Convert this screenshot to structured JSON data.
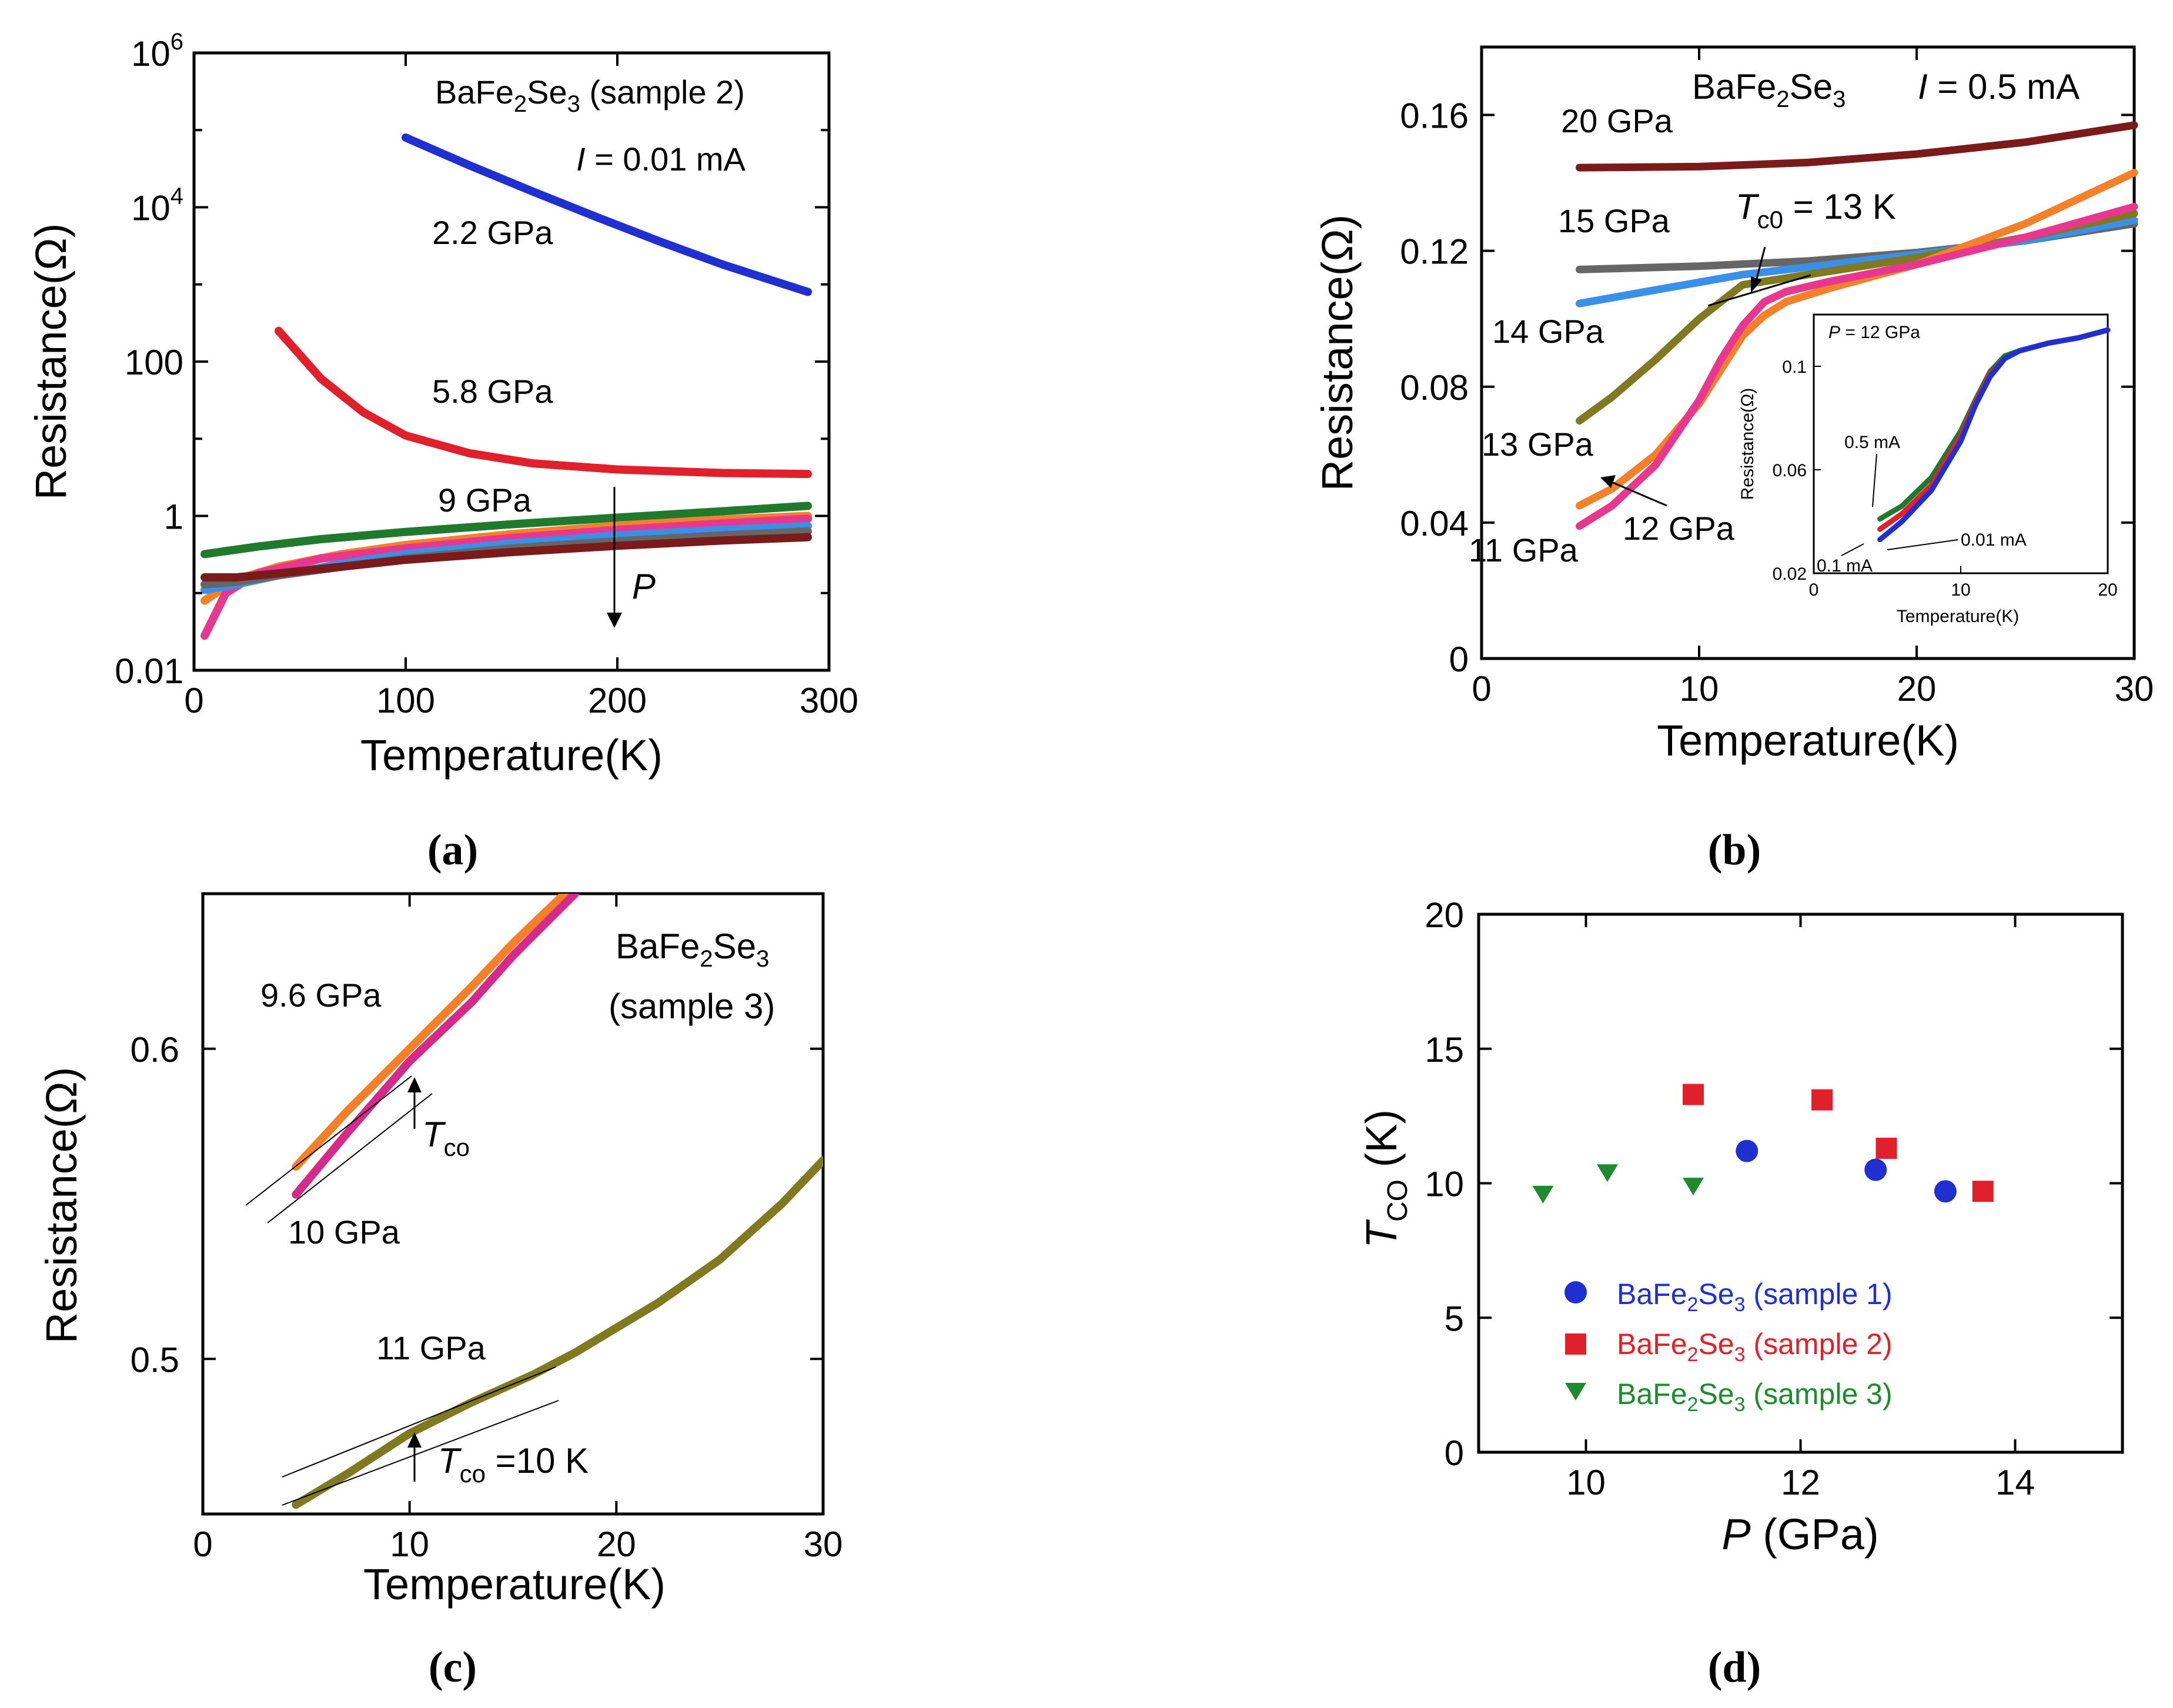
{
  "chart_data": [
    {
      "id": "a",
      "type": "line",
      "panel_label": "(a)",
      "xlabel": "Temperature(K)",
      "ylabel": "Resistance(Ω)",
      "xlim": [
        0,
        300
      ],
      "ylim": [
        0.01,
        1000000
      ],
      "yscale": "log",
      "x_ticks": [
        "0",
        "100",
        "200",
        "300"
      ],
      "y_ticks": [
        {
          "value": 0.01,
          "base": "0.01",
          "exp": ""
        },
        {
          "value": 1,
          "base": "1",
          "exp": ""
        },
        {
          "value": 100,
          "base": "100",
          "exp": ""
        },
        {
          "value": 10000,
          "base": "10",
          "exp": "4"
        },
        {
          "value": 1000000,
          "base": "10",
          "exp": "6"
        }
      ],
      "title": {
        "formula": {
          "a": "BaFe",
          "s1": "2",
          "b": "Se",
          "s2": "3"
        },
        "suffix": " (sample 2)"
      },
      "current": {
        "var": "I",
        "value": " = 0.01 mA"
      },
      "arrow_label": "P",
      "series": [
        {
          "name": "2.2 GPa",
          "color": "#1f2fd0",
          "x": [
            100,
            130,
            160,
            190,
            220,
            250,
            290
          ],
          "y": [
            80000,
            35000,
            16000,
            7500,
            3600,
            1800,
            800
          ]
        },
        {
          "name": "5.8 GPa",
          "color": "#e0202a",
          "x": [
            40,
            60,
            80,
            100,
            130,
            160,
            200,
            250,
            290
          ],
          "y": [
            250,
            60,
            22,
            11,
            6.5,
            4.8,
            4.0,
            3.6,
            3.5
          ]
        },
        {
          "name": "9 GPa",
          "color": "#1f7a2e",
          "x": [
            5,
            30,
            60,
            100,
            150,
            200,
            250,
            290
          ],
          "y": [
            0.32,
            0.4,
            0.5,
            0.62,
            0.78,
            0.95,
            1.15,
            1.35
          ]
        },
        {
          "name": "orange",
          "color": "#f5802a",
          "x": [
            5,
            20,
            40,
            70,
            100,
            150,
            200,
            250,
            290
          ],
          "y": [
            0.08,
            0.15,
            0.22,
            0.32,
            0.42,
            0.58,
            0.75,
            0.9,
            1.0
          ]
        },
        {
          "name": "magenta",
          "color": "#e8378f",
          "x": [
            5,
            15,
            30,
            60,
            100,
            150,
            200,
            250,
            290
          ],
          "y": [
            0.028,
            0.1,
            0.18,
            0.28,
            0.38,
            0.52,
            0.66,
            0.8,
            0.92
          ]
        },
        {
          "name": "blue",
          "color": "#3a8fe8",
          "x": [
            5,
            20,
            40,
            70,
            100,
            150,
            200,
            250,
            290
          ],
          "y": [
            0.11,
            0.13,
            0.17,
            0.24,
            0.32,
            0.44,
            0.56,
            0.66,
            0.74
          ]
        },
        {
          "name": "gray",
          "color": "#666666",
          "x": [
            5,
            20,
            40,
            70,
            100,
            150,
            200,
            250,
            290
          ],
          "y": [
            0.13,
            0.14,
            0.17,
            0.22,
            0.28,
            0.38,
            0.47,
            0.56,
            0.63
          ]
        },
        {
          "name": "dark red",
          "color": "#7a1a1a",
          "x": [
            5,
            20,
            40,
            70,
            100,
            150,
            200,
            250,
            290
          ],
          "y": [
            0.16,
            0.16,
            0.18,
            0.22,
            0.27,
            0.34,
            0.41,
            0.48,
            0.53
          ]
        }
      ],
      "labels": [
        "2.2 GPa",
        "5.8 GPa",
        "9 GPa"
      ]
    },
    {
      "id": "b",
      "type": "line",
      "panel_label": "(b)",
      "xlabel": "Temperature(K)",
      "ylabel": "Resistance(Ω)",
      "xlim": [
        0,
        30
      ],
      "ylim": [
        0,
        0.18
      ],
      "x_ticks": [
        "0",
        "10",
        "20",
        "30"
      ],
      "y_ticks": [
        "0",
        "0.04",
        "0.08",
        "0.12",
        "0.16"
      ],
      "title": {
        "formula": {
          "a": "BaFe",
          "s1": "2",
          "b": "Se",
          "s2": "3"
        }
      },
      "current": {
        "var": "I",
        "value": " = 0.5 mA"
      },
      "tc_label": {
        "var": "T",
        "sub": "c0",
        "value": " = 13 K"
      },
      "series": [
        {
          "name": "20 GPa",
          "color": "#7a1a1a",
          "x": [
            4.5,
            10,
            15,
            20,
            25,
            30
          ],
          "y": [
            0.1445,
            0.1448,
            0.146,
            0.1485,
            0.152,
            0.157
          ]
        },
        {
          "name": "15 GPa",
          "color": "#666666",
          "x": [
            4.5,
            10,
            15,
            20,
            25,
            30
          ],
          "y": [
            0.1145,
            0.1155,
            0.117,
            0.1195,
            0.123,
            0.128
          ]
        },
        {
          "name": "14 GPa",
          "color": "#3a8fe8",
          "x": [
            4.5,
            8,
            12,
            16,
            20,
            25,
            30
          ],
          "y": [
            0.1045,
            0.1085,
            0.113,
            0.116,
            0.119,
            0.123,
            0.129
          ]
        },
        {
          "name": "13 GPa",
          "color": "#7f7a20",
          "x": [
            4.5,
            6,
            8,
            10,
            12,
            14,
            17,
            20,
            25,
            30
          ],
          "y": [
            0.07,
            0.077,
            0.088,
            0.1,
            0.11,
            0.112,
            0.115,
            0.118,
            0.124,
            0.131
          ]
        },
        {
          "name": "12 GPa",
          "color": "#f5802a",
          "x": [
            4.5,
            6,
            8,
            10,
            11,
            12,
            13,
            14,
            16,
            20,
            25,
            30
          ],
          "y": [
            0.045,
            0.05,
            0.06,
            0.075,
            0.085,
            0.095,
            0.101,
            0.105,
            0.109,
            0.116,
            0.128,
            0.143
          ]
        },
        {
          "name": "11 GPa",
          "color": "#e8378f",
          "x": [
            4.5,
            6,
            8,
            10,
            11,
            12,
            13,
            14,
            16,
            20,
            25,
            30
          ],
          "y": [
            0.039,
            0.045,
            0.057,
            0.076,
            0.088,
            0.098,
            0.105,
            0.108,
            0.111,
            0.116,
            0.124,
            0.133
          ]
        }
      ],
      "labels": [
        "20 GPa",
        "15 GPa",
        "14 GPa",
        "13 GPa",
        "11 GPa",
        "12 GPa"
      ],
      "inset": {
        "title": "P = 12 GPa",
        "title_var": "P",
        "title_rest": " = 12 GPa",
        "xlabel": "Temperature(K)",
        "ylabel": "Resistance(Ω)",
        "xlim": [
          0,
          20
        ],
        "ylim": [
          0.02,
          0.12
        ],
        "x_ticks": [
          "0",
          "10",
          "20"
        ],
        "y_ticks": [
          "0.02",
          "0.06",
          "0.1"
        ],
        "annotations": [
          "0.5 mA",
          "0.1 mA",
          "0.01 mA"
        ],
        "series": [
          {
            "name": "0.5 mA",
            "color": "#1f7a2e",
            "x": [
              4.5,
              6,
              8,
              10,
              11,
              12,
              13,
              14,
              16,
              18,
              20
            ],
            "y": [
              0.041,
              0.046,
              0.057,
              0.075,
              0.087,
              0.098,
              0.104,
              0.106,
              0.109,
              0.111,
              0.114
            ]
          },
          {
            "name": "0.1 mA",
            "color": "#e0202a",
            "x": [
              4.5,
              6,
              8,
              10,
              11,
              12,
              13,
              14,
              16,
              18,
              20
            ],
            "y": [
              0.037,
              0.043,
              0.054,
              0.073,
              0.086,
              0.097,
              0.103,
              0.106,
              0.109,
              0.111,
              0.114
            ]
          },
          {
            "name": "0.01 mA",
            "color": "#1f2fd0",
            "x": [
              4.5,
              6,
              8,
              10,
              11,
              12,
              13,
              14,
              16,
              18,
              20
            ],
            "y": [
              0.033,
              0.04,
              0.052,
              0.071,
              0.085,
              0.096,
              0.103,
              0.106,
              0.109,
              0.111,
              0.114
            ]
          }
        ]
      }
    },
    {
      "id": "c",
      "type": "line",
      "panel_label": "(c)",
      "xlabel": "Temperature(K)",
      "ylabel": "Resistance(Ω)",
      "xlim": [
        0,
        30
      ],
      "ylim": [
        0.45,
        0.65
      ],
      "x_ticks": [
        "0",
        "10",
        "20",
        "30"
      ],
      "y_ticks": [
        "0.5",
        "0.6"
      ],
      "title": {
        "formula": {
          "a": "BaFe",
          "s1": "2",
          "b": "Se",
          "s2": "3"
        },
        "line2": "(sample 3)"
      },
      "tc_label_1": {
        "var": "T",
        "sub": "co",
        "value": ""
      },
      "tc_label_2": {
        "var": "T",
        "sub": "co",
        "value": " =10 K"
      },
      "series": [
        {
          "name": "9.6 GPa",
          "color": "#f5802a",
          "x": [
            4.5,
            7,
            10,
            13,
            15,
            17.5
          ],
          "y": [
            0.562,
            0.58,
            0.6,
            0.62,
            0.634,
            0.65
          ]
        },
        {
          "name": "10 GPa",
          "color": "#d62a8a",
          "x": [
            4.5,
            7,
            10,
            13,
            15,
            18
          ],
          "y": [
            0.553,
            0.573,
            0.596,
            0.615,
            0.63,
            0.65
          ]
        },
        {
          "name": "11 GPa",
          "color": "#7f7a20",
          "x": [
            4.5,
            7,
            10,
            13,
            16,
            18,
            20,
            22,
            25,
            28,
            30
          ],
          "y": [
            0.453,
            0.463,
            0.476,
            0.486,
            0.495,
            0.502,
            0.51,
            0.518,
            0.532,
            0.55,
            0.564
          ]
        }
      ],
      "labels": [
        "9.6 GPa",
        "10 GPa",
        "11 GPa"
      ]
    },
    {
      "id": "d",
      "type": "scatter",
      "panel_label": "(d)",
      "xlabel_var": "P",
      "xlabel_rest": " (GPa)",
      "ylabel_var": "T",
      "ylabel_sub": "CO",
      "ylabel_rest": " (K)",
      "xlim": [
        9,
        15
      ],
      "ylim": [
        0,
        20
      ],
      "x_ticks": [
        "10",
        "12",
        "14"
      ],
      "y_ticks": [
        "0",
        "5",
        "10",
        "15",
        "20"
      ],
      "series": [
        {
          "name": "sample 1",
          "legend": {
            "a": "BaFe",
            "s1": "2",
            "b": "Se",
            "s2": "3",
            "rest": " (sample 1)"
          },
          "color": "#1f2fd0",
          "marker": "circle",
          "x": [
            11.5,
            12.7,
            13.35
          ],
          "y": [
            11.2,
            10.5,
            9.7
          ]
        },
        {
          "name": "sample 2",
          "legend": {
            "a": "BaFe",
            "s1": "2",
            "b": "Se",
            "s2": "3",
            "rest": " (sample 2)"
          },
          "color": "#e0202a",
          "marker": "square",
          "x": [
            11.0,
            12.2,
            12.8,
            13.7
          ],
          "y": [
            13.3,
            13.1,
            11.3,
            9.7
          ]
        },
        {
          "name": "sample 3",
          "legend": {
            "a": "BaFe",
            "s1": "2",
            "b": "Se",
            "s2": "3",
            "rest": " (sample 3)"
          },
          "color": "#1f8a2e",
          "marker": "triangle-down",
          "x": [
            9.6,
            10.2,
            11.0
          ],
          "y": [
            9.6,
            10.4,
            9.9
          ]
        }
      ]
    }
  ]
}
